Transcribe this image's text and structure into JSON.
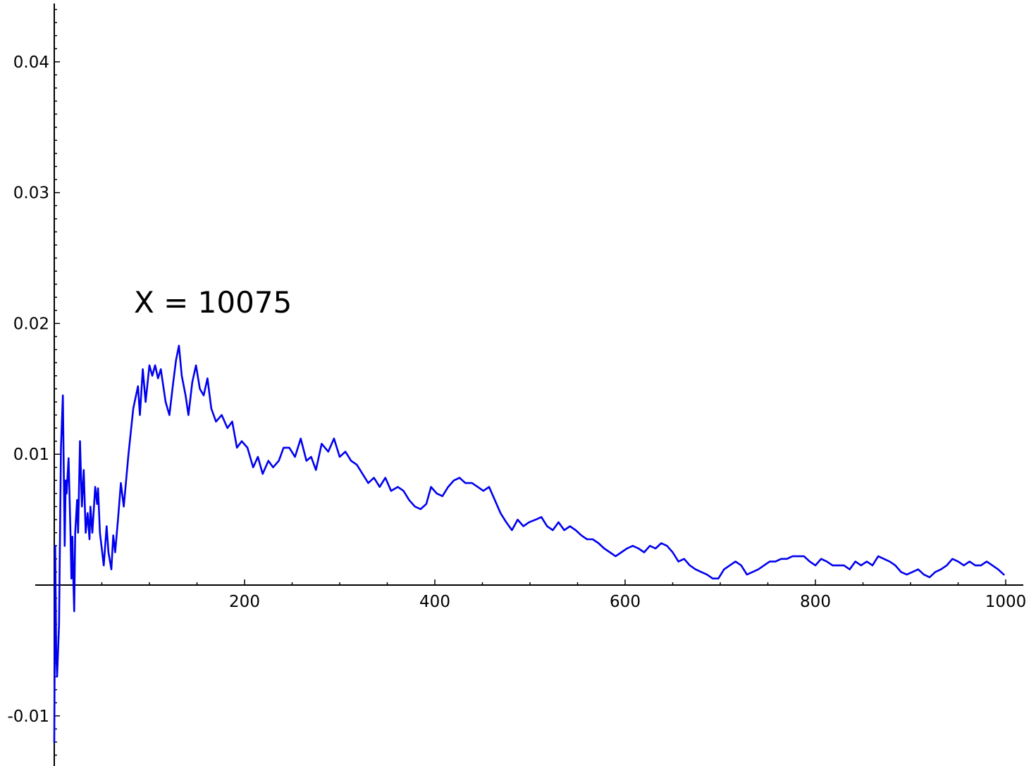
{
  "chart_data": {
    "type": "line",
    "title": "",
    "xlabel": "",
    "ylabel": "",
    "annotation": "X = 10075",
    "xlim": [
      0,
      1000
    ],
    "ylim": [
      -0.0138,
      0.0445
    ],
    "x_ticks": [
      "200",
      "400",
      "600",
      "800",
      "1000"
    ],
    "y_ticks": [
      "0.04",
      "0.03",
      "0.02",
      "0.01",
      "-0.01"
    ],
    "grid": false,
    "legend": "none",
    "colors": {
      "line": "#0000ee",
      "axis": "#000000"
    },
    "series": [
      {
        "points": [
          [
            0,
            -0.012
          ],
          [
            1,
            0.003
          ],
          [
            2,
            -0.005
          ],
          [
            3,
            -0.007
          ],
          [
            5,
            -0.003
          ],
          [
            7,
            0.0105
          ],
          [
            9,
            0.0145
          ],
          [
            11,
            0.003
          ],
          [
            12,
            0.008
          ],
          [
            13,
            0.007
          ],
          [
            15,
            0.0097
          ],
          [
            17,
            0.004
          ],
          [
            18,
            0.0005
          ],
          [
            19,
            0.0037
          ],
          [
            20,
            0.0005
          ],
          [
            21,
            -0.002
          ],
          [
            22,
            0.004
          ],
          [
            24,
            0.0065
          ],
          [
            25,
            0.004
          ],
          [
            27,
            0.011
          ],
          [
            29,
            0.006
          ],
          [
            31,
            0.0088
          ],
          [
            33,
            0.004
          ],
          [
            35,
            0.0055
          ],
          [
            37,
            0.0035
          ],
          [
            38,
            0.006
          ],
          [
            40,
            0.004
          ],
          [
            43,
            0.0075
          ],
          [
            45,
            0.0062
          ],
          [
            46,
            0.0074
          ],
          [
            48,
            0.004
          ],
          [
            52,
            0.0015
          ],
          [
            55,
            0.0045
          ],
          [
            57,
            0.0025
          ],
          [
            60,
            0.0012
          ],
          [
            62,
            0.0038
          ],
          [
            64,
            0.0025
          ],
          [
            67,
            0.005
          ],
          [
            70,
            0.0078
          ],
          [
            73,
            0.006
          ],
          [
            78,
            0.01
          ],
          [
            83,
            0.0135
          ],
          [
            88,
            0.0152
          ],
          [
            90,
            0.013
          ],
          [
            93,
            0.0165
          ],
          [
            96,
            0.014
          ],
          [
            100,
            0.0168
          ],
          [
            103,
            0.016
          ],
          [
            106,
            0.0168
          ],
          [
            109,
            0.0158
          ],
          [
            112,
            0.0165
          ],
          [
            117,
            0.014
          ],
          [
            121,
            0.013
          ],
          [
            125,
            0.0155
          ],
          [
            128,
            0.0172
          ],
          [
            131,
            0.0183
          ],
          [
            134,
            0.016
          ],
          [
            138,
            0.0145
          ],
          [
            141,
            0.013
          ],
          [
            145,
            0.0155
          ],
          [
            149,
            0.0168
          ],
          [
            153,
            0.015
          ],
          [
            157,
            0.0145
          ],
          [
            161,
            0.0158
          ],
          [
            165,
            0.0135
          ],
          [
            170,
            0.0125
          ],
          [
            176,
            0.013
          ],
          [
            182,
            0.012
          ],
          [
            187,
            0.0125
          ],
          [
            192,
            0.0105
          ],
          [
            197,
            0.011
          ],
          [
            203,
            0.0105
          ],
          [
            209,
            0.009
          ],
          [
            214,
            0.0098
          ],
          [
            219,
            0.0085
          ],
          [
            225,
            0.0095
          ],
          [
            230,
            0.009
          ],
          [
            236,
            0.0095
          ],
          [
            241,
            0.0105
          ],
          [
            247,
            0.0105
          ],
          [
            253,
            0.0098
          ],
          [
            259,
            0.0112
          ],
          [
            265,
            0.0095
          ],
          [
            270,
            0.0098
          ],
          [
            275,
            0.0088
          ],
          [
            281,
            0.0108
          ],
          [
            288,
            0.0102
          ],
          [
            294,
            0.0112
          ],
          [
            300,
            0.0098
          ],
          [
            306,
            0.0102
          ],
          [
            312,
            0.0095
          ],
          [
            318,
            0.0092
          ],
          [
            324,
            0.0085
          ],
          [
            330,
            0.0078
          ],
          [
            336,
            0.0082
          ],
          [
            342,
            0.0075
          ],
          [
            348,
            0.0082
          ],
          [
            354,
            0.0072
          ],
          [
            361,
            0.0075
          ],
          [
            367,
            0.0072
          ],
          [
            373,
            0.0065
          ],
          [
            379,
            0.006
          ],
          [
            385,
            0.0058
          ],
          [
            391,
            0.0062
          ],
          [
            396,
            0.0075
          ],
          [
            402,
            0.007
          ],
          [
            408,
            0.0068
          ],
          [
            414,
            0.0075
          ],
          [
            420,
            0.008
          ],
          [
            426,
            0.0082
          ],
          [
            432,
            0.0078
          ],
          [
            439,
            0.0078
          ],
          [
            445,
            0.0075
          ],
          [
            451,
            0.0072
          ],
          [
            457,
            0.0075
          ],
          [
            463,
            0.0065
          ],
          [
            469,
            0.0055
          ],
          [
            475,
            0.0048
          ],
          [
            481,
            0.0042
          ],
          [
            487,
            0.005
          ],
          [
            493,
            0.0045
          ],
          [
            499,
            0.0048
          ],
          [
            506,
            0.005
          ],
          [
            512,
            0.0052
          ],
          [
            518,
            0.0045
          ],
          [
            524,
            0.0042
          ],
          [
            530,
            0.0048
          ],
          [
            536,
            0.0042
          ],
          [
            542,
            0.0045
          ],
          [
            548,
            0.0042
          ],
          [
            554,
            0.0038
          ],
          [
            560,
            0.0035
          ],
          [
            566,
            0.0035
          ],
          [
            572,
            0.0032
          ],
          [
            578,
            0.0028
          ],
          [
            584,
            0.0025
          ],
          [
            590,
            0.0022
          ],
          [
            596,
            0.0025
          ],
          [
            602,
            0.0028
          ],
          [
            608,
            0.003
          ],
          [
            614,
            0.0028
          ],
          [
            620,
            0.0025
          ],
          [
            626,
            0.003
          ],
          [
            632,
            0.0028
          ],
          [
            638,
            0.0032
          ],
          [
            644,
            0.003
          ],
          [
            650,
            0.0025
          ],
          [
            656,
            0.0018
          ],
          [
            662,
            0.002
          ],
          [
            668,
            0.0015
          ],
          [
            674,
            0.0012
          ],
          [
            680,
            0.001
          ],
          [
            686,
            0.0008
          ],
          [
            692,
            0.0005
          ],
          [
            698,
            0.0005
          ],
          [
            704,
            0.0012
          ],
          [
            710,
            0.0015
          ],
          [
            716,
            0.0018
          ],
          [
            722,
            0.0015
          ],
          [
            728,
            0.0008
          ],
          [
            734,
            0.001
          ],
          [
            740,
            0.0012
          ],
          [
            746,
            0.0015
          ],
          [
            752,
            0.0018
          ],
          [
            758,
            0.0018
          ],
          [
            764,
            0.002
          ],
          [
            770,
            0.002
          ],
          [
            776,
            0.0022
          ],
          [
            782,
            0.0022
          ],
          [
            788,
            0.0022
          ],
          [
            794,
            0.0018
          ],
          [
            800,
            0.0015
          ],
          [
            806,
            0.002
          ],
          [
            812,
            0.0018
          ],
          [
            818,
            0.0015
          ],
          [
            824,
            0.0015
          ],
          [
            830,
            0.0015
          ],
          [
            836,
            0.0012
          ],
          [
            842,
            0.0018
          ],
          [
            848,
            0.0015
          ],
          [
            854,
            0.0018
          ],
          [
            860,
            0.0015
          ],
          [
            866,
            0.0022
          ],
          [
            872,
            0.002
          ],
          [
            878,
            0.0018
          ],
          [
            884,
            0.0015
          ],
          [
            890,
            0.001
          ],
          [
            896,
            0.0008
          ],
          [
            902,
            0.001
          ],
          [
            908,
            0.0012
          ],
          [
            914,
            0.0008
          ],
          [
            920,
            0.0006
          ],
          [
            926,
            0.001
          ],
          [
            932,
            0.0012
          ],
          [
            938,
            0.0015
          ],
          [
            944,
            0.002
          ],
          [
            950,
            0.0018
          ],
          [
            956,
            0.0015
          ],
          [
            962,
            0.0018
          ],
          [
            968,
            0.0015
          ],
          [
            974,
            0.0015
          ],
          [
            980,
            0.0018
          ],
          [
            986,
            0.0015
          ],
          [
            992,
            0.0012
          ],
          [
            998,
            0.0008
          ]
        ]
      }
    ]
  }
}
